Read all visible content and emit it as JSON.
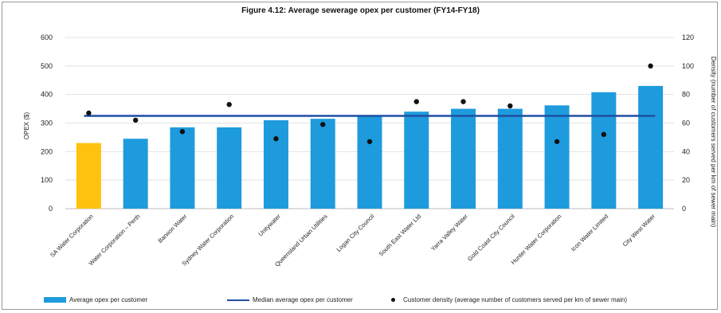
{
  "chart_data": {
    "type": "bar",
    "title": "Figure 4.12: Average sewerage opex per customer  (FY14-FY18)",
    "ylabel": "OPEX ($)",
    "y2label": "Density (number of customers served per km of sewer main)",
    "ylim": [
      0,
      600
    ],
    "y2lim": [
      0,
      120
    ],
    "yticks": [
      "0",
      "100",
      "200",
      "300",
      "400",
      "500",
      "600"
    ],
    "y2ticks": [
      "0",
      "20",
      "40",
      "60",
      "80",
      "100",
      "120"
    ],
    "grid": true,
    "legend_position": "bottom",
    "categories": [
      "SA Water Corporation",
      "Water Corporation – Perth",
      "Barwon Water",
      "Sydney Water Corporation",
      "Unitywater",
      "Queensland Urban Utilities",
      "Logan City Council",
      "South East Water Ltd",
      "Yarra Valley Water",
      "Gold Coast City Council",
      "Hunter Water Corporation",
      "Icon Water Limited",
      "City West Water"
    ],
    "series": [
      {
        "name": "Average opex per customer",
        "kind": "bar",
        "axis": "left",
        "values": [
          230,
          245,
          285,
          285,
          310,
          315,
          325,
          340,
          350,
          350,
          362,
          408,
          430
        ],
        "colors": [
          "#FFC20E",
          "#1E9BDD",
          "#1E9BDD",
          "#1E9BDD",
          "#1E9BDD",
          "#1E9BDD",
          "#1E9BDD",
          "#1E9BDD",
          "#1E9BDD",
          "#1E9BDD",
          "#1E9BDD",
          "#1E9BDD",
          "#1E9BDD"
        ]
      },
      {
        "name": "Median average opex per customer",
        "kind": "line",
        "axis": "left",
        "value": 325,
        "color": "#1F4FA3"
      },
      {
        "name": "Customer density (average number of customers served per km of sewer main)",
        "kind": "scatter",
        "axis": "right",
        "values": [
          67,
          62,
          54,
          73,
          49,
          59,
          47,
          75,
          75,
          72,
          47,
          52,
          100
        ],
        "color": "#111111"
      }
    ]
  },
  "legend": {
    "bar_label": "Average opex per customer",
    "line_label": "Median average opex per customer",
    "dot_label": "Customer density (average number of customers served per km of sewer main)"
  }
}
